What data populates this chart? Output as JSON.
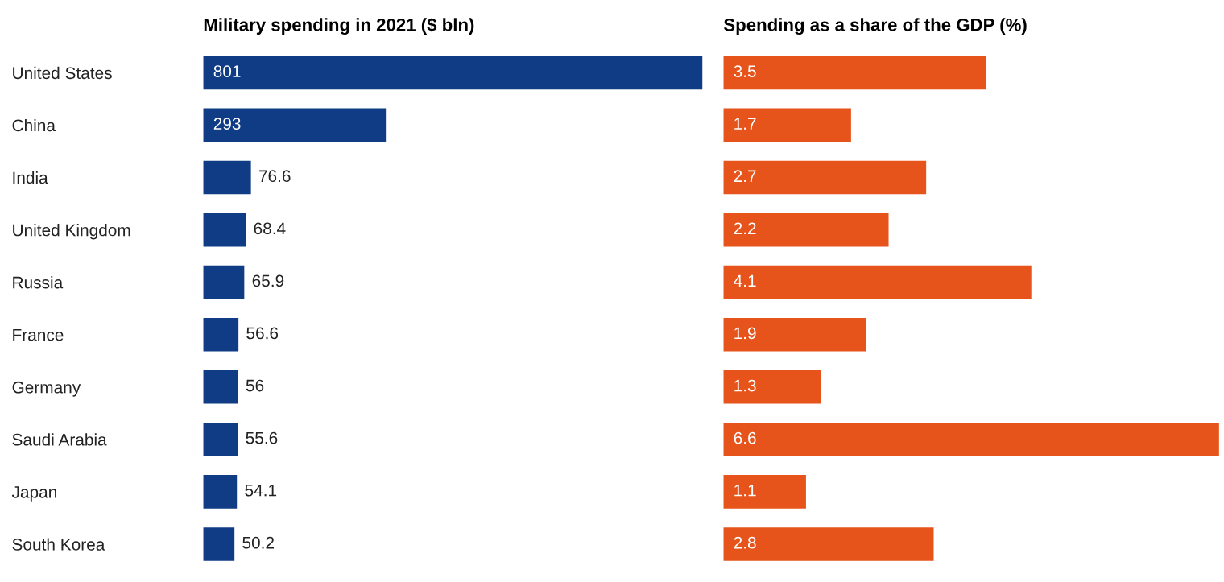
{
  "chart_data": [
    {
      "type": "bar",
      "orientation": "horizontal",
      "title": "Military spending in 2021 ($ bln)",
      "categories": [
        "United States",
        "China",
        "India",
        "United Kingdom",
        "Russia",
        "France",
        "Germany",
        "Saudi Arabia",
        "Japan",
        "South Korea"
      ],
      "values": [
        801,
        293,
        76.6,
        68.4,
        65.9,
        56.6,
        56,
        55.6,
        54.1,
        50.2
      ],
      "color": "#0f3c85",
      "data_labels": true,
      "tick_labels": "y"
    },
    {
      "type": "bar",
      "orientation": "horizontal",
      "title": "Spending as a share of the GDP (%)",
      "categories": [
        null,
        null,
        null,
        null,
        null,
        null,
        null,
        null,
        null,
        null
      ],
      "values": [
        3.5,
        1.7,
        2.7,
        2.2,
        4.1,
        1.9,
        1.3,
        6.6,
        1.1,
        2.8
      ],
      "color": "#e6531b",
      "data_labels": true,
      "tick_labels": "y"
    }
  ]
}
